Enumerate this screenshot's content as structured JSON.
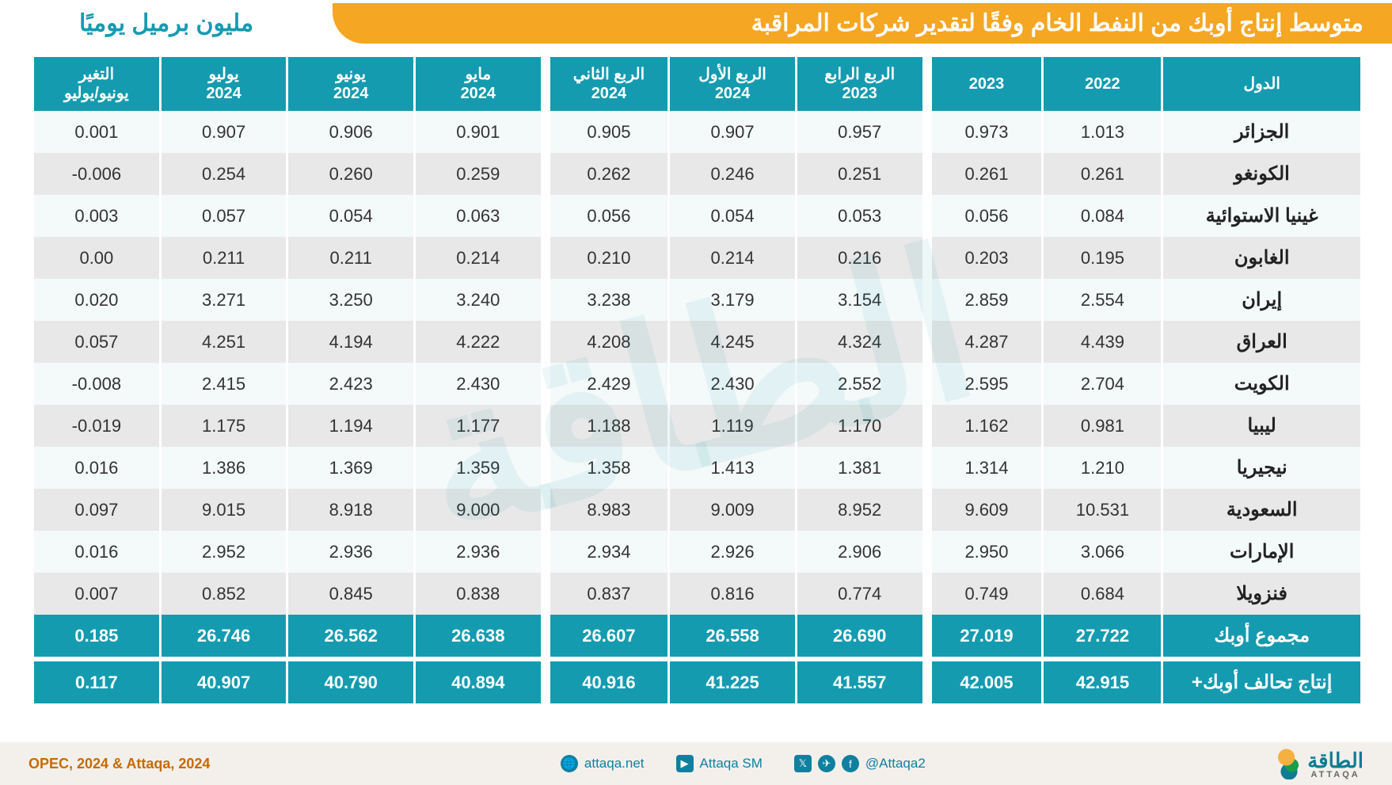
{
  "title": "متوسط إنتاج أوبك من النفط الخام وفقًا لتقدير شركات المراقبة",
  "unit": "مليون برميل يوميًا",
  "watermark": "الطاقة",
  "headers": {
    "country": "الدول",
    "y2022": "2022",
    "y2023": "2023",
    "q4_2023": "الربع الرابع\n2023",
    "q1_2024": "الربع الأول\n2024",
    "q2_2024": "الربع الثاني\n2024",
    "may_2024": "مايو\n2024",
    "jun_2024": "يونيو\n2024",
    "jul_2024": "يوليو\n2024",
    "change": "التغير\nيونيو/يوليو"
  },
  "rows": [
    {
      "country": "الجزائر",
      "y2022": "1.013",
      "y2023": "0.973",
      "q4_2023": "0.957",
      "q1_2024": "0.907",
      "q2_2024": "0.905",
      "may": "0.901",
      "jun": "0.906",
      "jul": "0.907",
      "chg": "0.001"
    },
    {
      "country": "الكونغو",
      "y2022": "0.261",
      "y2023": "0.261",
      "q4_2023": "0.251",
      "q1_2024": "0.246",
      "q2_2024": "0.262",
      "may": "0.259",
      "jun": "0.260",
      "jul": "0.254",
      "chg": "0.006-"
    },
    {
      "country": "غينيا الاستوائية",
      "y2022": "0.084",
      "y2023": "0.056",
      "q4_2023": "0.053",
      "q1_2024": "0.054",
      "q2_2024": "0.056",
      "may": "0.063",
      "jun": "0.054",
      "jul": "0.057",
      "chg": "0.003"
    },
    {
      "country": "الغابون",
      "y2022": "0.195",
      "y2023": "0.203",
      "q4_2023": "0.216",
      "q1_2024": "0.214",
      "q2_2024": "0.210",
      "may": "0.214",
      "jun": "0.211",
      "jul": "0.211",
      "chg": "0.00"
    },
    {
      "country": "إيران",
      "y2022": "2.554",
      "y2023": "2.859",
      "q4_2023": "3.154",
      "q1_2024": "3.179",
      "q2_2024": "3.238",
      "may": "3.240",
      "jun": "3.250",
      "jul": "3.271",
      "chg": "0.020"
    },
    {
      "country": "العراق",
      "y2022": "4.439",
      "y2023": "4.287",
      "q4_2023": "4.324",
      "q1_2024": "4.245",
      "q2_2024": "4.208",
      "may": "4.222",
      "jun": "4.194",
      "jul": "4.251",
      "chg": "0.057"
    },
    {
      "country": "الكويت",
      "y2022": "2.704",
      "y2023": "2.595",
      "q4_2023": "2.552",
      "q1_2024": "2.430",
      "q2_2024": "2.429",
      "may": "2.430",
      "jun": "2.423",
      "jul": "2.415",
      "chg": "0.008-"
    },
    {
      "country": "ليبيا",
      "y2022": "0.981",
      "y2023": "1.162",
      "q4_2023": "1.170",
      "q1_2024": "1.119",
      "q2_2024": "1.188",
      "may": "1.177",
      "jun": "1.194",
      "jul": "1.175",
      "chg": "0.019-"
    },
    {
      "country": "نيجيريا",
      "y2022": "1.210",
      "y2023": "1.314",
      "q4_2023": "1.381",
      "q1_2024": "1.413",
      "q2_2024": "1.358",
      "may": "1.359",
      "jun": "1.369",
      "jul": "1.386",
      "chg": "0.016"
    },
    {
      "country": "السعودية",
      "y2022": "10.531",
      "y2023": "9.609",
      "q4_2023": "8.952",
      "q1_2024": "9.009",
      "q2_2024": "8.983",
      "may": "9.000",
      "jun": "8.918",
      "jul": "9.015",
      "chg": "0.097"
    },
    {
      "country": "الإمارات",
      "y2022": "3.066",
      "y2023": "2.950",
      "q4_2023": "2.906",
      "q1_2024": "2.926",
      "q2_2024": "2.934",
      "may": "2.936",
      "jun": "2.936",
      "jul": "2.952",
      "chg": "0.016"
    },
    {
      "country": "فنزويلا",
      "y2022": "0.684",
      "y2023": "0.749",
      "q4_2023": "0.774",
      "q1_2024": "0.816",
      "q2_2024": "0.837",
      "may": "0.838",
      "jun": "0.845",
      "jul": "0.852",
      "chg": "0.007"
    }
  ],
  "totals": [
    {
      "country": "مجموع أوبك",
      "y2022": "27.722",
      "y2023": "27.019",
      "q4_2023": "26.690",
      "q1_2024": "26.558",
      "q2_2024": "26.607",
      "may": "26.638",
      "jun": "26.562",
      "jul": "26.746",
      "chg": "0.185"
    },
    {
      "country": "إنتاج تحالف أوبك+",
      "y2022": "42.915",
      "y2023": "42.005",
      "q4_2023": "41.557",
      "q1_2024": "41.225",
      "q2_2024": "40.916",
      "may": "40.894",
      "jun": "40.790",
      "jul": "40.907",
      "chg": "0.117"
    }
  ],
  "footer": {
    "source": "OPEC, 2024 & Attaqa, 2024",
    "website": "attaqa.net",
    "youtube": "Attaqa SM",
    "social": "@Attaqa2",
    "logo_ar": "الطاقة",
    "logo_en": "ATTAQA"
  },
  "style": {
    "header_bg": "#f5a623",
    "header_text": "#ffffff",
    "table_header_bg": "#159bb0",
    "row_odd_bg": "#f4f9fa",
    "row_even_bg": "#e8e8e8",
    "total_bg": "#159bb0",
    "footer_bg": "#f3f0eb",
    "accent": "#1080a0",
    "source_color": "#c76a00",
    "body_font_size": 22,
    "header_font_size": 20,
    "title_font_size": 30
  }
}
